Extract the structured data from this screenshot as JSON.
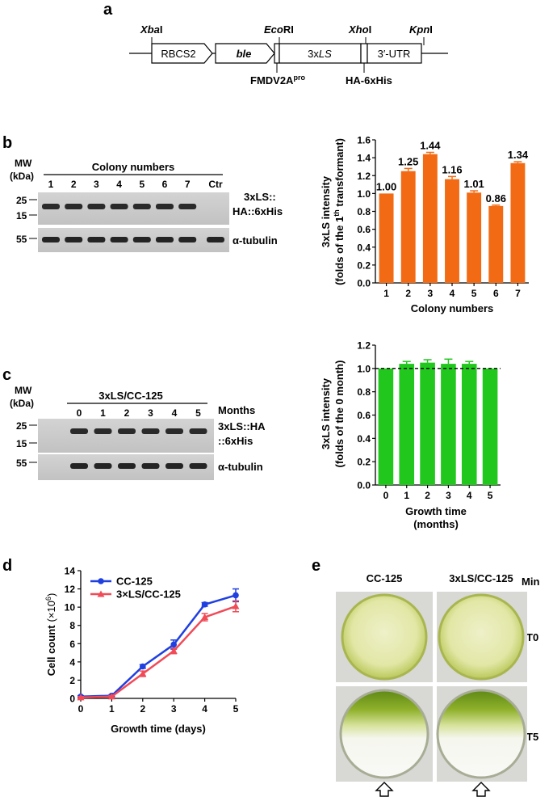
{
  "panel_a": {
    "label": "a",
    "sites": {
      "xba_prefix": "Xba",
      "xba_suffix": "I",
      "eco_prefix": "Eco",
      "eco_suffix": "RI",
      "xho_prefix": "Xho",
      "xho_suffix": "I",
      "kpn_prefix": "Kpn",
      "kpn_suffix": "I"
    },
    "segments": {
      "rbcs2": "RBCS2",
      "ble": "ble",
      "ls_prefix": "3x",
      "ls_italic": "LS",
      "utr": "3′-UTR"
    },
    "bottom_labels": {
      "fmdv": "FMDV2A",
      "fmdv_sup": "pro",
      "ha": "HA-6xHis"
    }
  },
  "panel_b": {
    "label": "b",
    "blot": {
      "mw_label": "MW",
      "kda_label": "(kDa)",
      "header": "Colony numbers",
      "lanes": [
        "1",
        "2",
        "3",
        "4",
        "5",
        "6",
        "7",
        "Ctr"
      ],
      "markers": [
        "25",
        "15",
        "55"
      ],
      "target_line1": "3xLS::",
      "target_line2": "HA::6xHis",
      "tubulin": "α-tubulin"
    }
  },
  "panel_c": {
    "label": "c",
    "blot": {
      "mw_label": "MW",
      "kda_label": "(kDa)",
      "header": "3xLS/CC-125",
      "months_label": "Months",
      "lanes": [
        "0",
        "1",
        "2",
        "3",
        "4",
        "5"
      ],
      "markers": [
        "25",
        "15",
        "55"
      ],
      "target_line1": "3xLS::HA",
      "target_line2": "::6xHis",
      "tubulin": "α-tubulin"
    }
  },
  "panel_d": {
    "label": "d"
  },
  "panel_e": {
    "label": "e",
    "columns": [
      "CC-125",
      "3xLS/CC-125"
    ],
    "min_label": "Min",
    "rows": [
      "T0",
      "T5"
    ],
    "colors": {
      "algae_dark": "#8ea820",
      "algae_light": "#dfe59a",
      "plate_bg": "#d9d9d6"
    }
  },
  "colors": {
    "orange": "#f26b14",
    "green": "#22c71e",
    "blue": "#1f3fe0",
    "red": "#f04b57"
  },
  "chart_data": [
    {
      "type": "bar",
      "categories": [
        "1",
        "2",
        "3",
        "4",
        "5",
        "6",
        "7"
      ],
      "values": [
        1.0,
        1.25,
        1.44,
        1.16,
        1.01,
        0.86,
        1.34
      ],
      "errors": [
        0.0,
        0.03,
        0.02,
        0.03,
        0.02,
        0.01,
        0.015
      ],
      "value_labels": [
        "1.00",
        "1.25",
        "1.44",
        "1.16",
        "1.01",
        "0.86",
        "1.34"
      ],
      "xlabel": "Colony numbers",
      "ylabel_line1": "3xLS intensity",
      "ylabel_line2": "(folds of the 1",
      "ylabel_sup": "th",
      "ylabel_line2_end": " transformant)",
      "ylim": [
        0,
        1.6
      ],
      "yticks": [
        "0.0",
        "0.2",
        "0.4",
        "0.6",
        "0.8",
        "1.0",
        "1.2",
        "1.4",
        "1.6"
      ],
      "color": "#f26b14"
    },
    {
      "type": "bar",
      "categories": [
        "0",
        "1",
        "2",
        "3",
        "4",
        "5"
      ],
      "values": [
        1.0,
        1.04,
        1.05,
        1.04,
        1.04,
        1.0
      ],
      "errors": [
        0.0,
        0.02,
        0.025,
        0.04,
        0.02,
        0.0
      ],
      "xlabel_line1": "Growth time",
      "xlabel_line2": "(months)",
      "ylabel_line1": "3xLS intensity",
      "ylabel_line2": "(folds of the 0 month)",
      "ylim": [
        0,
        1.2
      ],
      "yticks": [
        "0.0",
        "0.2",
        "0.4",
        "0.6",
        "0.8",
        "1.0",
        "1.2"
      ],
      "reference_line": 1.0,
      "color": "#22c71e"
    },
    {
      "type": "line",
      "x": [
        0,
        1,
        2,
        3,
        4,
        5
      ],
      "series": [
        {
          "name": "CC-125",
          "values": [
            0.2,
            0.3,
            3.5,
            5.9,
            10.3,
            11.3
          ],
          "errors": [
            0.1,
            0.1,
            0.2,
            0.5,
            0.2,
            0.7
          ],
          "color": "#1f3fe0",
          "marker": "circle"
        },
        {
          "name": "3×LS/CC-125",
          "values": [
            0.1,
            0.2,
            2.7,
            5.2,
            8.9,
            10.1
          ],
          "errors": [
            0.1,
            0.1,
            0.3,
            0.3,
            0.4,
            0.6
          ],
          "color": "#f04b57",
          "marker": "triangle"
        }
      ],
      "xlabel": "Growth time (days)",
      "ylabel": "Cell count",
      "ylabel_unit": "(×10",
      "ylabel_sup": "6",
      "ylabel_unit_end": ")",
      "xlim": [
        0,
        5
      ],
      "ylim": [
        0,
        14
      ],
      "xticks": [
        "0",
        "1",
        "2",
        "3",
        "4",
        "5"
      ],
      "yticks": [
        "0",
        "2",
        "4",
        "6",
        "8",
        "10",
        "12",
        "14"
      ],
      "legend": "top-left"
    }
  ]
}
